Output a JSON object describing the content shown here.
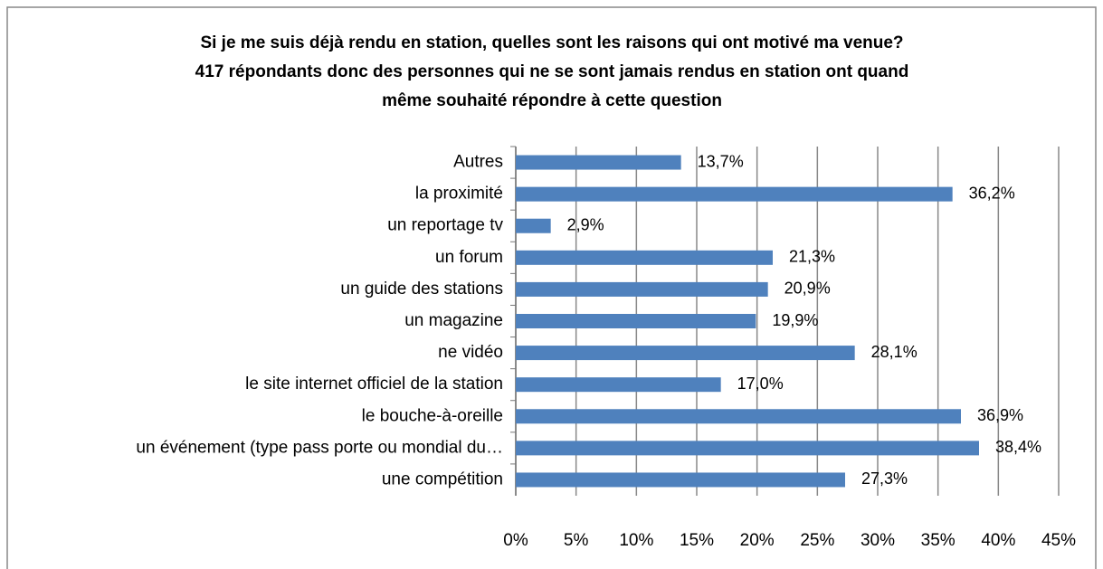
{
  "chart_data": {
    "type": "bar",
    "orientation": "horizontal",
    "title": [
      "Si je me suis déjà rendu en station, quelles sont les raisons qui ont motivé ma venue?",
      "417 répondants donc des personnes qui ne se sont jamais rendus en station ont quand",
      "même souhaité répondre à cette question"
    ],
    "categories": [
      "Autres",
      "la proximité",
      "un reportage tv",
      "un forum",
      "un guide des stations",
      "un magazine",
      "ne vidéo",
      "le site internet officiel de la station",
      "le bouche-à-oreille",
      "un événement (type pass porte ou mondial du…",
      "une compétition"
    ],
    "values": [
      13.7,
      36.2,
      2.9,
      21.3,
      20.9,
      19.9,
      28.1,
      17.0,
      36.9,
      38.4,
      27.3
    ],
    "value_labels": [
      "13,7%",
      "36,2%",
      "2,9%",
      "21,3%",
      "20,9%",
      "19,9%",
      "28,1%",
      "17,0%",
      "36,9%",
      "38,4%",
      "27,3%"
    ],
    "color": "#4f81bd",
    "xlim": [
      0,
      45
    ],
    "xticks": [
      {
        "value": 0,
        "label": "0%"
      },
      {
        "value": 5,
        "label": "5%"
      },
      {
        "value": 10,
        "label": "10%"
      },
      {
        "value": 15,
        "label": "15%"
      },
      {
        "value": 20,
        "label": "20%"
      },
      {
        "value": 25,
        "label": "25%"
      },
      {
        "value": 30,
        "label": "30%"
      },
      {
        "value": 35,
        "label": "35%"
      },
      {
        "value": 40,
        "label": "40%"
      },
      {
        "value": 45,
        "label": "45%"
      }
    ],
    "grid": true
  }
}
